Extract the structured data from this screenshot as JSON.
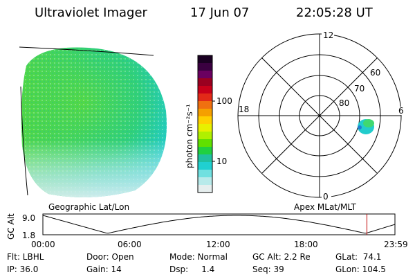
{
  "header": {
    "title": "Ultraviolet Imager",
    "date": "17 Jun 07",
    "time": "22:05:28 UT"
  },
  "colorbar": {
    "unit_label": "photon cm⁻²s⁻¹",
    "ticks": [
      "100",
      "10"
    ],
    "colors": [
      "#1a0022",
      "#3a0040",
      "#6a0060",
      "#9a0020",
      "#c8001a",
      "#e22a18",
      "#f07010",
      "#f5a000",
      "#ffd000",
      "#e8f000",
      "#b0f000",
      "#60e000",
      "#20d040",
      "#20c0a0",
      "#20d0d0",
      "#70e0e0",
      "#b8eaea",
      "#e6eeee"
    ]
  },
  "left_panel": {
    "label": "Geographic Lat/Lon"
  },
  "polar_panel": {
    "label": "Apex MLat/MLT",
    "hour_labels": {
      "top": "12",
      "bottom": "0",
      "left": "18",
      "right": "6"
    },
    "lat_labels": [
      "60",
      "70",
      "80"
    ]
  },
  "timeline": {
    "axis_label": "GC Alt",
    "y_ticks": [
      "9.0",
      "1.8"
    ],
    "x_ticks": [
      "00:00",
      "06:00",
      "12:00",
      "18:00",
      "23:59"
    ],
    "current_marker_hours": 22.09,
    "marker_color": "#c00000"
  },
  "footer": {
    "flt": "Flt: LBHL",
    "ip": "IP: 36.0",
    "door": "Door: Open",
    "gain": "Gain: 14",
    "mode": "Mode: Normal",
    "dsp": "Dsp:     1.4",
    "gc_alt": "GC Alt: 2.2 Re",
    "seq": "Seq: 39",
    "glat": "GLat:  74.1",
    "glon": "GLon: 104.5"
  }
}
